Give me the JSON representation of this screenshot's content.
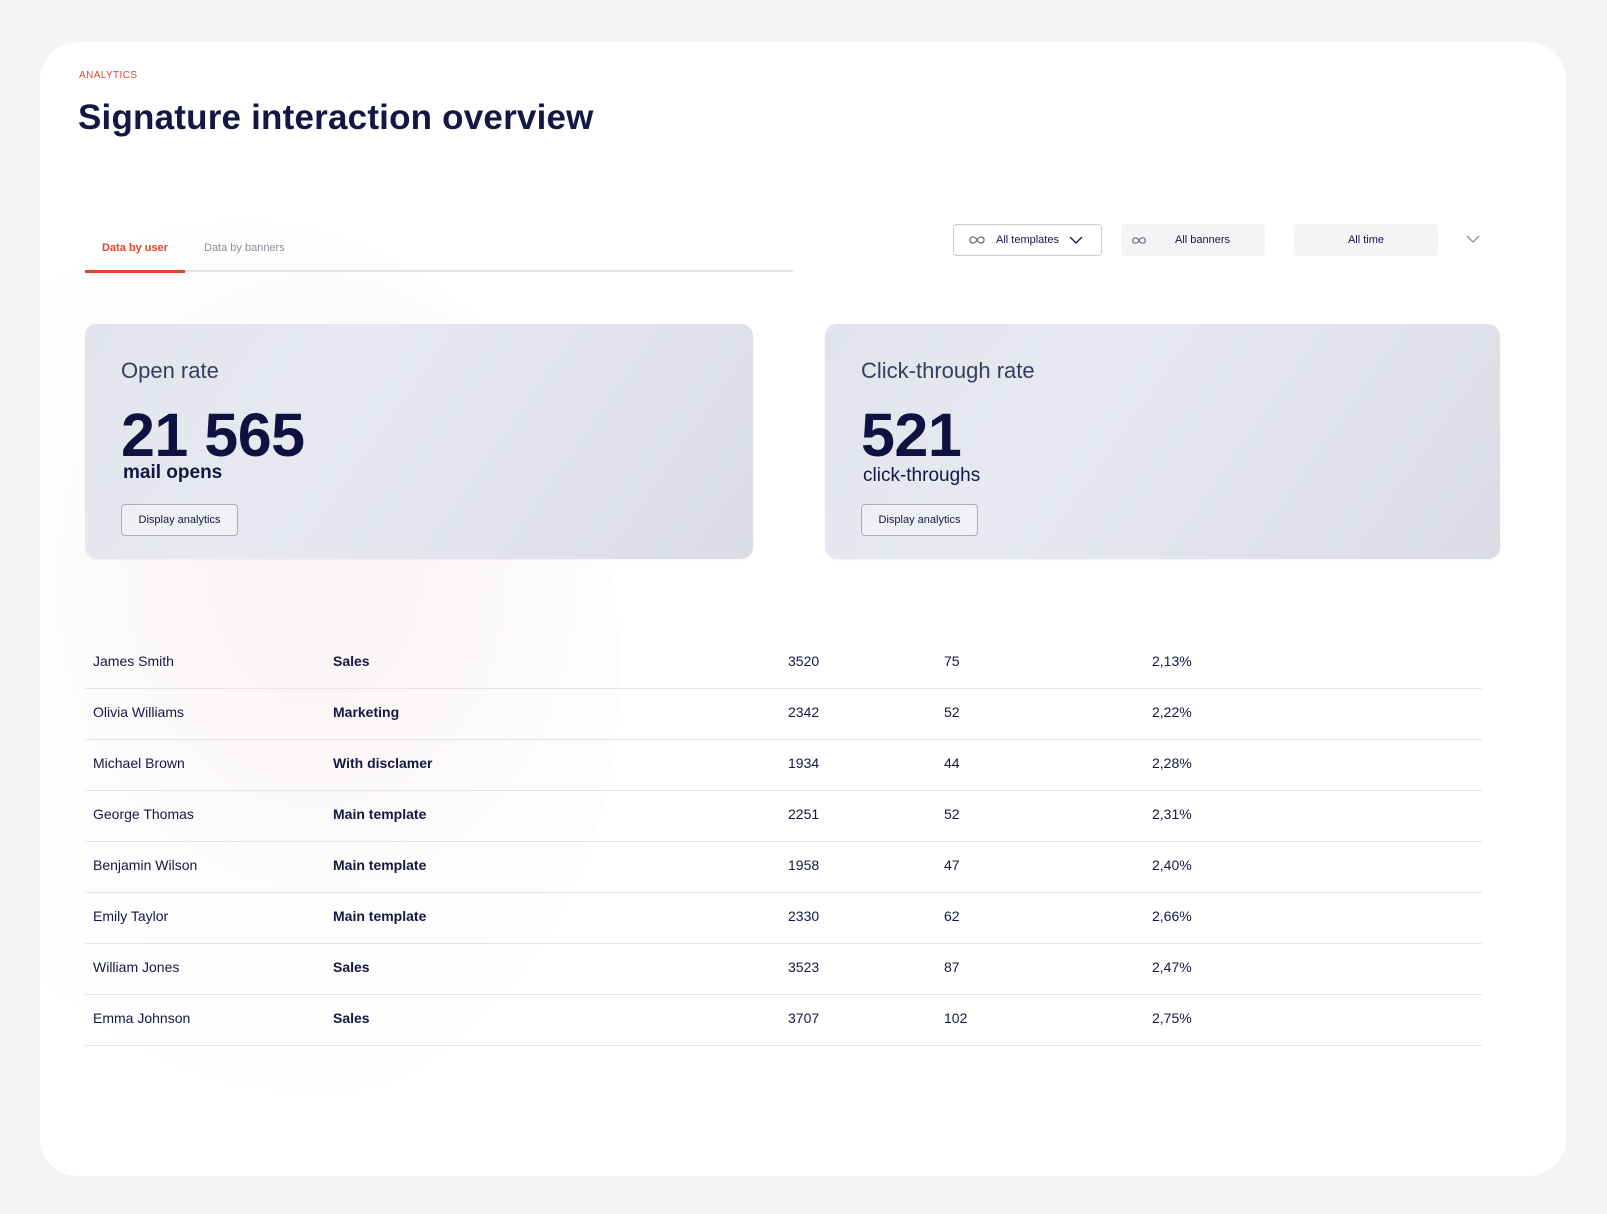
{
  "header": {
    "eyebrow": "ANALYTICS",
    "title": "Signature interaction overview"
  },
  "tabs": [
    {
      "label": "Data by user",
      "active": true
    },
    {
      "label": "Data by banners",
      "active": false
    }
  ],
  "filters": {
    "templates": {
      "label": "All templates",
      "icon": "infinity-icon"
    },
    "banners": {
      "label": "All banners",
      "icon": "infinity-icon"
    },
    "period": {
      "label": "All time",
      "icon": "chevron-down-icon"
    }
  },
  "cards": {
    "open_rate": {
      "label": "Open rate",
      "value": "21 565",
      "unit": "mail opens",
      "button": "Display analytics"
    },
    "click_rate": {
      "label": "Click-through rate",
      "value": "521",
      "unit": "click-throughs",
      "button": "Display analytics"
    }
  },
  "table": {
    "rows": [
      {
        "name": "James Smith",
        "template": "Sales",
        "opens": "3520",
        "clicks": "75",
        "rate": "2,13%"
      },
      {
        "name": "Olivia Williams",
        "template": "Marketing",
        "opens": "2342",
        "clicks": "52",
        "rate": "2,22%"
      },
      {
        "name": "Michael Brown",
        "template": "With disclamer",
        "opens": "1934",
        "clicks": "44",
        "rate": "2,28%"
      },
      {
        "name": "George Thomas",
        "template": "Main template",
        "opens": "2251",
        "clicks": "52",
        "rate": "2,31%"
      },
      {
        "name": "Benjamin Wilson",
        "template": "Main template",
        "opens": "1958",
        "clicks": "47",
        "rate": "2,40%"
      },
      {
        "name": "Emily Taylor",
        "template": "Main template",
        "opens": "2330",
        "clicks": "62",
        "rate": "2,66%"
      },
      {
        "name": "William Jones",
        "template": "Sales",
        "opens": "3523",
        "clicks": "87",
        "rate": "2,47%"
      },
      {
        "name": "Emma Johnson",
        "template": "Sales",
        "opens": "3707",
        "clicks": "102",
        "rate": "2,75%"
      }
    ]
  },
  "colors": {
    "accent": "#e0452f",
    "text": "#141745",
    "card_bg": "#e2e3ec"
  }
}
